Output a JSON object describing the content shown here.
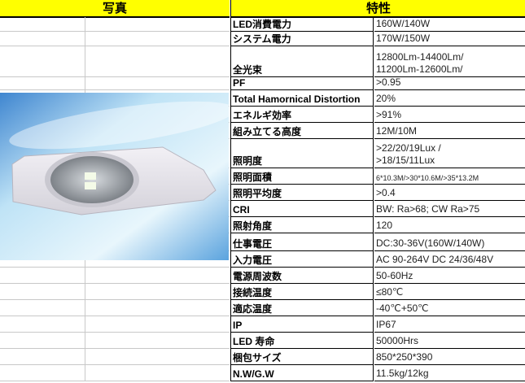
{
  "headers": {
    "photo": "写真",
    "specs": "特性"
  },
  "photo": {
    "icon": "led-street-light-photo"
  },
  "rows": [
    {
      "label": "LED消費電力",
      "value": [
        "160W/140W"
      ]
    },
    {
      "label": "システム電力",
      "value": [
        "170W/150W"
      ]
    },
    {
      "label": "全光束",
      "value": [
        "12800Lm-14400Lm/",
        "11200Lm-12600Lm/"
      ]
    },
    {
      "label": "PF",
      "value": [
        ">0.95"
      ]
    },
    {
      "label": "Total Hamornical Distortion",
      "value": [
        "20%"
      ]
    },
    {
      "label": "エネルギ効率",
      "value": [
        ">91%"
      ]
    },
    {
      "label": "組み立てる高度",
      "value": [
        "12M/10M"
      ]
    },
    {
      "label": "照明度",
      "value": [
        ">22/20/19Lux /",
        ">18/15/11Lux"
      ]
    },
    {
      "label": "照明面積",
      "value": [
        "6*10.3M/>30*10.6M/>35*13.2M"
      ]
    },
    {
      "label": "照明平均度",
      "value": [
        ">0.4"
      ]
    },
    {
      "label": "CRI",
      "value": [
        "BW: Ra>68; CW Ra>75"
      ]
    },
    {
      "label": "照射角度",
      "value": [
        "120"
      ]
    },
    {
      "label": "仕事電圧",
      "value": [
        "DC:30-36V(160W/140W)"
      ]
    },
    {
      "label": "入力電圧",
      "value": [
        "AC 90-264V DC 24/36/48V"
      ]
    },
    {
      "label": "電源周波数",
      "value": [
        "50-60Hz"
      ]
    },
    {
      "label": "接続温度",
      "value": [
        "≤80℃"
      ]
    },
    {
      "label": "適応温度",
      "value": [
        " -40℃+50℃"
      ]
    },
    {
      "label": "IP",
      "value": [
        "IP67"
      ]
    },
    {
      "label": "LED 寿命",
      "value": [
        "50000Hrs"
      ]
    },
    {
      "label": "梱包サイズ",
      "value": [
        "850*250*390"
      ]
    },
    {
      "label": "N.W/G.W",
      "value": [
        "11.5kg/12kg"
      ]
    }
  ]
}
